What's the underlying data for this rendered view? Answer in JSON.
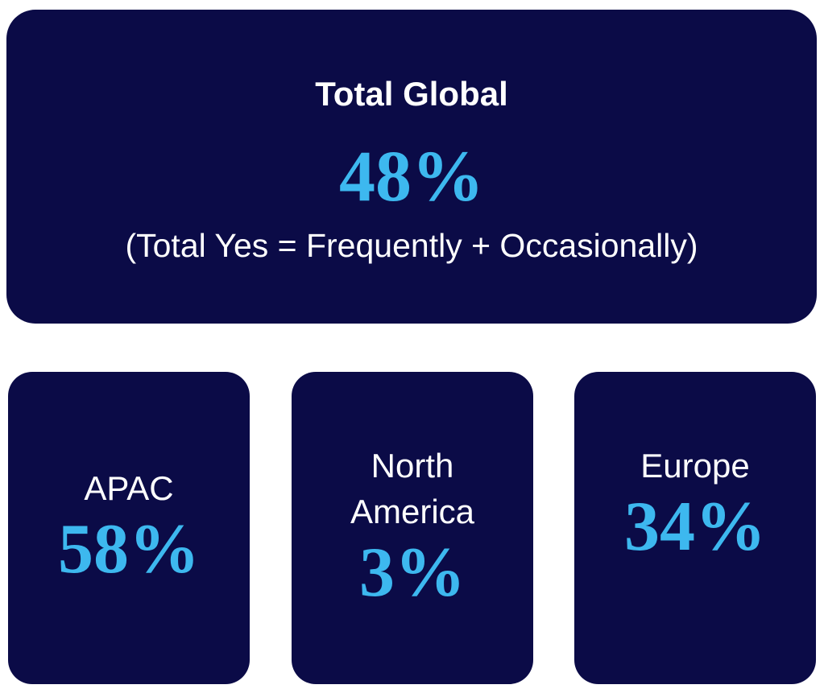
{
  "total": {
    "title": "Total Global",
    "value": "48%",
    "note": "(Total Yes = Frequently + Occasionally)"
  },
  "regions": [
    {
      "name": "APAC",
      "value": "58%"
    },
    {
      "name": "North America",
      "value": "3%"
    },
    {
      "name": "Europe",
      "value": "34%"
    }
  ]
}
